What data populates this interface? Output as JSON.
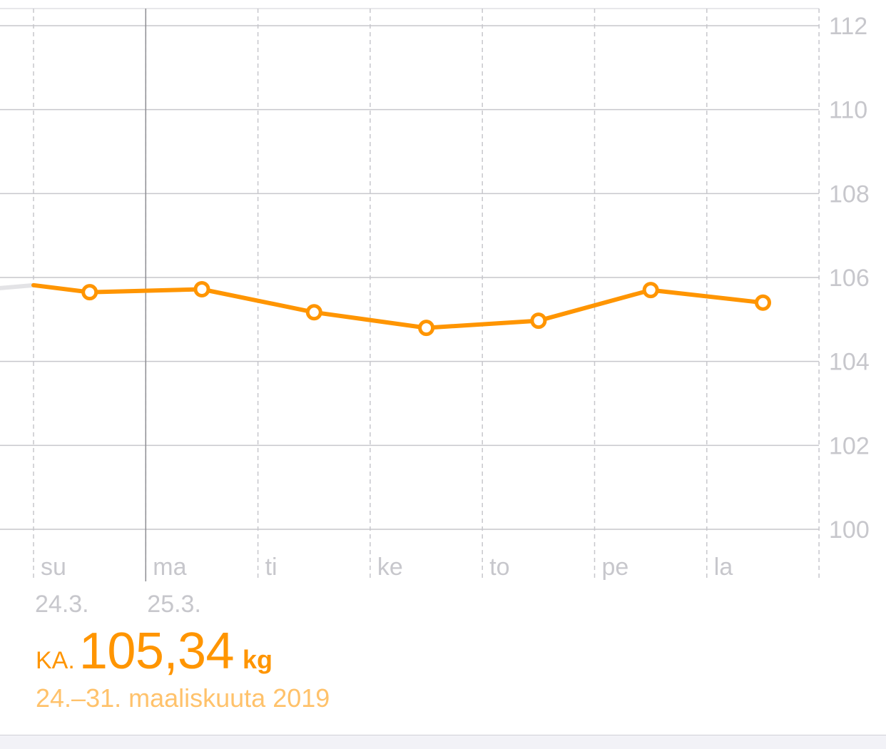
{
  "chart_data": {
    "type": "line",
    "y_ticks": [
      "112",
      "110",
      "108",
      "106",
      "104",
      "102",
      "100"
    ],
    "ylim": [
      100,
      112
    ],
    "day_labels": [
      "su",
      "ma",
      "ti",
      "ke",
      "to",
      "pe",
      "la"
    ],
    "date_labels": [
      "24.3.",
      "25.3."
    ],
    "series": [
      {
        "x": [
          "24.3.",
          "25.3.",
          "26.3.",
          "27.3.",
          "28.3.",
          "29.3.",
          "30.3."
        ],
        "values": [
          105.65,
          105.72,
          105.17,
          104.8,
          104.97,
          105.7,
          105.4
        ],
        "color": "#ff9500"
      }
    ],
    "previous_value": 105.85,
    "grid": true
  },
  "summary": {
    "label": "KA.",
    "value": "105,34",
    "unit": "kg",
    "range": "24.–31. maaliskuuta 2019"
  },
  "colors": {
    "accent": "#ff9500",
    "accent_light": "#ffc26b",
    "grid": "#c7c7cc",
    "text_muted": "#c7c7cc"
  }
}
